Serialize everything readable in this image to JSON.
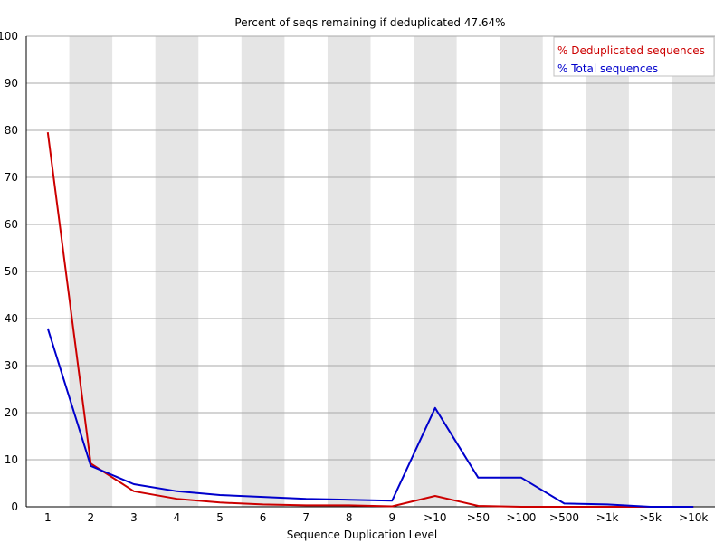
{
  "chart_data": {
    "type": "line",
    "title": "Percent of seqs remaining if deduplicated 47.64%",
    "xlabel": "Sequence Duplication Level",
    "ylabel": "",
    "ylim": [
      0,
      100
    ],
    "yticks": [
      0,
      10,
      20,
      30,
      40,
      50,
      60,
      70,
      80,
      90,
      100
    ],
    "categories": [
      "1",
      "2",
      "3",
      "4",
      "5",
      "6",
      "7",
      "8",
      "9",
      ">10",
      ">50",
      ">100",
      ">500",
      ">1k",
      ">5k",
      ">10k"
    ],
    "series": [
      {
        "name": "% Deduplicated sequences",
        "color": "#cc0000",
        "values": [
          79.6,
          9.2,
          3.3,
          1.7,
          0.9,
          0.5,
          0.3,
          0.3,
          0.1,
          2.3,
          0.2,
          0.0,
          0.0,
          0.0,
          0.0,
          0.0
        ]
      },
      {
        "name": "% Total sequences",
        "color": "#0000cc",
        "values": [
          37.9,
          8.7,
          4.8,
          3.3,
          2.5,
          2.1,
          1.7,
          1.5,
          1.3,
          21.0,
          6.2,
          6.2,
          0.7,
          0.5,
          0.0,
          0.0
        ]
      }
    ],
    "grid": true,
    "legend_position": "top-right"
  }
}
